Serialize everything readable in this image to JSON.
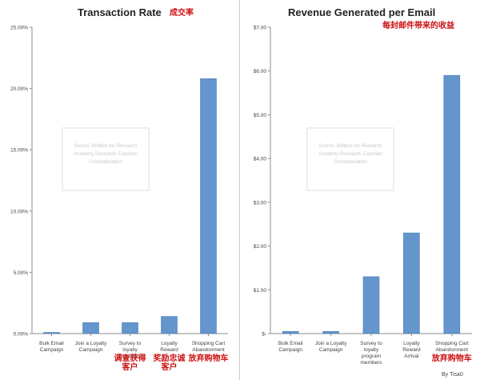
{
  "colors": {
    "bar": "#6495cd",
    "bar_stroke": "#4f7fb5",
    "axis": "#8c8c8c",
    "annotation": "#cc1111"
  },
  "chart_data": [
    {
      "type": "bar",
      "title": "Transaction Rate",
      "title_note": "成交率",
      "categories": [
        [
          "Bulk Email",
          "Campaign"
        ],
        [
          "Join a Loyalty",
          "Campaign"
        ],
        [
          "Survey to",
          "loyalty",
          "members"
        ],
        [
          "Loyalty",
          "Reward"
        ],
        [
          "Shopping Cart",
          "Abandonment"
        ]
      ],
      "values": [
        0.1,
        0.9,
        0.9,
        1.4,
        20.8
      ],
      "ylim": [
        0,
        25
      ],
      "yticks": [
        0,
        5,
        10,
        15,
        20,
        25
      ],
      "ytick_labels": [
        "0.00%",
        "5.00%",
        "10.00%",
        "15.00%",
        "20.00%",
        "25.00%"
      ],
      "xlabel": "",
      "ylabel": "",
      "grid": false,
      "legend": "none",
      "annotations": [
        {
          "category_index": 2,
          "lines": [
            "调查获得",
            "客户"
          ]
        },
        {
          "category_index": 3,
          "lines": [
            "奖励忠诚",
            "客户"
          ]
        },
        {
          "category_index": 4,
          "lines": [
            "放弃购物车"
          ]
        }
      ],
      "watermark": [
        "Source: Brillbox Inc Research",
        "Academy Research, Experian",
        "Crosstabulation"
      ]
    },
    {
      "type": "bar",
      "title": "Revenue Generated per Email",
      "title_note": "每封邮件带来的收益",
      "categories": [
        [
          "Bulk Email",
          "Campaign"
        ],
        [
          "Join a Loyalty",
          "Campaign"
        ],
        [
          "Survey to",
          "loyalty",
          "program",
          "members"
        ],
        [
          "Loyalty",
          "Reward",
          "Arrival"
        ],
        [
          "Shopping Cart",
          "Abandonment"
        ]
      ],
      "values": [
        0.05,
        0.05,
        1.3,
        2.3,
        5.9
      ],
      "ylim": [
        0,
        7
      ],
      "yticks": [
        0,
        1,
        2,
        3,
        4,
        5,
        6,
        7
      ],
      "ytick_labels": [
        "$-",
        "$1.00",
        "$2.00",
        "$3.00",
        "$4.00",
        "$5.00",
        "$6.00",
        "$7.00"
      ],
      "xlabel": "",
      "ylabel": "",
      "grid": false,
      "legend": "none",
      "annotations": [
        {
          "category_index": 4,
          "lines": [
            "放弃购物车"
          ]
        }
      ],
      "watermark": [
        "Source: Brillbox Inc Research",
        "Academy Research, Experian",
        "Crosstabulation"
      ]
    }
  ],
  "credit": "By Tisa0"
}
